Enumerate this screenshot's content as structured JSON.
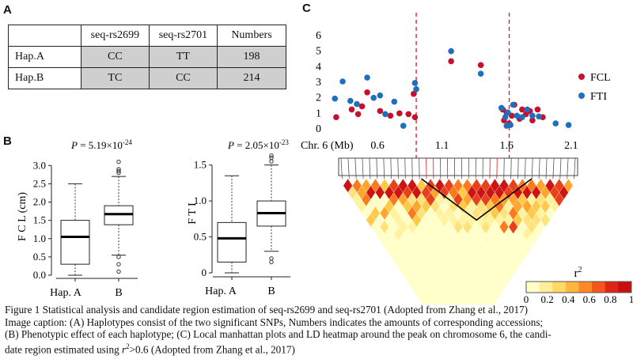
{
  "panel_a": {
    "letter": "A",
    "headers": [
      "",
      "seq-rs2699",
      "seq-rs2701",
      "Numbers"
    ],
    "rows": [
      [
        "Hap.A",
        "CC",
        "TT",
        "198"
      ],
      [
        "Hap.B",
        "TC",
        "CC",
        "214"
      ]
    ]
  },
  "panel_b": {
    "letter": "B"
  },
  "panel_c": {
    "letter": "C"
  },
  "chart_data": [
    {
      "type": "box",
      "title": "P = 5.19×10⁻²⁴",
      "p_label": "P",
      "p_value": "= 5.19×10",
      "p_exp": "-24",
      "ylabel": "F C L (cm)",
      "categories": [
        "Hap. A",
        "B"
      ],
      "ylim": [
        0,
        3.2
      ],
      "yticks": [
        "0.0",
        "0.5",
        "1.0",
        "1.5",
        "2.0",
        "2.5",
        "3.0"
      ],
      "boxes": [
        {
          "min": 0.0,
          "q1": 0.3,
          "median": 1.05,
          "q3": 1.5,
          "max": 2.5,
          "outliers": []
        },
        {
          "min": 0.55,
          "q1": 1.38,
          "median": 1.67,
          "q3": 1.9,
          "max": 2.7,
          "outliers": [
            0.1,
            0.3,
            0.5,
            2.8,
            2.85,
            2.9,
            3.1
          ]
        }
      ]
    },
    {
      "type": "box",
      "title": "P = 2.05×10⁻²³",
      "p_label": "P",
      "p_value": "= 2.05×10",
      "p_exp": "-23",
      "ylabel": "F T I",
      "categories": [
        "Hap.  A",
        "B"
      ],
      "ylim": [
        0,
        1.65
      ],
      "yticks": [
        "0",
        "0.5",
        "1.0",
        "1.5"
      ],
      "boxes": [
        {
          "min": 0.0,
          "q1": 0.15,
          "median": 0.48,
          "q3": 0.7,
          "max": 1.35,
          "outliers": []
        },
        {
          "min": 0.3,
          "q1": 0.65,
          "median": 0.83,
          "q3": 1.0,
          "max": 1.5,
          "outliers": [
            0.15,
            0.2,
            1.55,
            1.6,
            1.63
          ]
        }
      ]
    },
    {
      "type": "scatter",
      "xlabel_prefix": "Chr. 6 (Mb)",
      "xticks": [
        "0.6",
        "1.1",
        "1.6",
        "2.1"
      ],
      "xtick_values": [
        0.6,
        1.1,
        1.6,
        2.1
      ],
      "xlim": [
        0.25,
        2.15
      ],
      "ylim": [
        0,
        6
      ],
      "yticks": [
        "0",
        "1",
        "2",
        "3",
        "4",
        "5",
        "6"
      ],
      "vlines": [
        0.9,
        1.62
      ],
      "series": [
        {
          "name": "FCL",
          "color": "#c8102e",
          "points": [
            [
              0.28,
              0.7
            ],
            [
              0.4,
              1.2
            ],
            [
              0.45,
              0.9
            ],
            [
              0.48,
              1.4
            ],
            [
              0.52,
              2.3
            ],
            [
              0.62,
              1.1
            ],
            [
              0.7,
              0.8
            ],
            [
              0.77,
              0.95
            ],
            [
              0.84,
              0.9
            ],
            [
              0.88,
              2.2
            ],
            [
              0.89,
              0.7
            ],
            [
              1.17,
              4.3
            ],
            [
              1.4,
              4.05
            ],
            [
              1.57,
              1.2
            ],
            [
              1.58,
              0.5
            ],
            [
              1.6,
              1.0
            ],
            [
              1.62,
              0.3
            ],
            [
              1.64,
              0.8
            ],
            [
              1.66,
              1.5
            ],
            [
              1.7,
              0.6
            ],
            [
              1.72,
              1.2
            ],
            [
              1.75,
              0.9
            ],
            [
              1.78,
              1.1
            ],
            [
              1.8,
              0.5
            ],
            [
              1.84,
              1.2
            ],
            [
              1.88,
              0.7
            ]
          ]
        },
        {
          "name": "FTI",
          "color": "#1f6fbf",
          "points": [
            [
              0.27,
              1.9
            ],
            [
              0.33,
              3.0
            ],
            [
              0.39,
              1.75
            ],
            [
              0.44,
              1.55
            ],
            [
              0.52,
              3.25
            ],
            [
              0.57,
              1.95
            ],
            [
              0.62,
              2.1
            ],
            [
              0.66,
              0.9
            ],
            [
              0.73,
              1.7
            ],
            [
              0.8,
              0.15
            ],
            [
              0.89,
              2.9
            ],
            [
              0.9,
              2.5
            ],
            [
              1.17,
              4.95
            ],
            [
              1.4,
              3.5
            ],
            [
              1.56,
              1.3
            ],
            [
              1.59,
              0.7
            ],
            [
              1.6,
              0.15
            ],
            [
              1.61,
              1.0
            ],
            [
              1.63,
              0.2
            ],
            [
              1.65,
              1.5
            ],
            [
              1.68,
              0.8
            ],
            [
              1.72,
              0.7
            ],
            [
              1.76,
              1.2
            ],
            [
              1.8,
              0.8
            ],
            [
              1.85,
              0.75
            ],
            [
              1.98,
              0.3
            ],
            [
              2.08,
              0.2
            ]
          ]
        }
      ]
    },
    {
      "type": "heatmap",
      "colorbar_title": "r",
      "colorbar_sup": "2",
      "colorbar_ticks": [
        "0",
        "0.2",
        "0.4",
        "0.6",
        "0.8",
        "1"
      ],
      "colorbar_range": [
        0,
        1
      ]
    }
  ],
  "caption": {
    "line1": "Figure 1 Statistical analysis and candidate region estimation of seq-rs2699 and seq-rs2701 (Adopted from Zhang et al., 2017)",
    "line2": "Image caption: (A) Haplotypes consist of the two significant SNPs, Numbers indicates the amounts of corresponding accessions;",
    "line3": "(B) Phenotypic effect of each haplotype; (C) Local manhattan plots and LD heatmap around the peak on chromosome 6, the candi-",
    "line4a": "date region estimated using ",
    "line4r": "r",
    "line4sup": "2",
    "line4b": ">0.6 (Adopted from Zhang et al., 2017)"
  }
}
